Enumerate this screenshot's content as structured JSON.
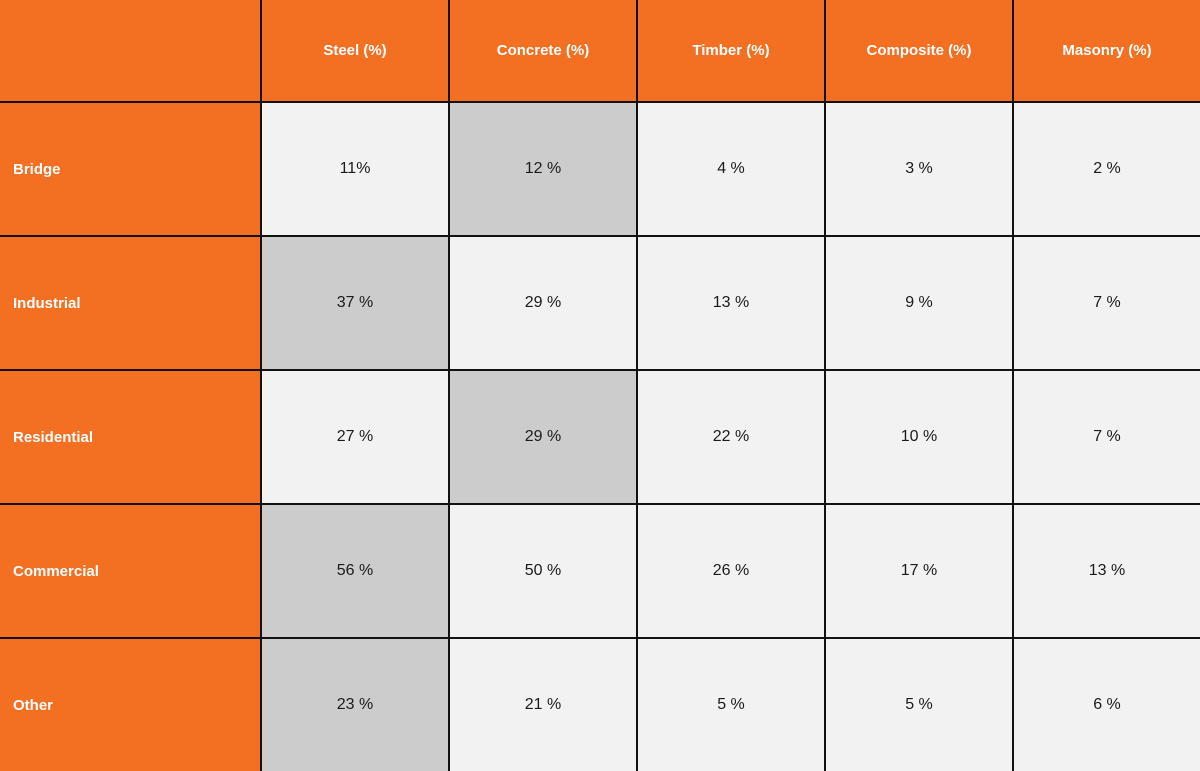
{
  "chart_data": {
    "type": "table",
    "corner_label": "",
    "columns": [
      "Steel (%)",
      "Concrete (%)",
      "Timber (%)",
      "Composite (%)",
      "Masonry (%)"
    ],
    "rows": [
      {
        "label": "Bridge",
        "values": [
          "11%",
          "12 %",
          "4 %",
          "3 %",
          "2 %"
        ],
        "highlighted_columns": [
          1
        ]
      },
      {
        "label": "Industrial",
        "values": [
          "37 %",
          "29 %",
          "13 %",
          "9 %",
          "7 %"
        ],
        "highlighted_columns": [
          0
        ]
      },
      {
        "label": "Residential",
        "values": [
          "27 %",
          "29 %",
          "22 %",
          "10 %",
          "7 %"
        ],
        "highlighted_columns": [
          1
        ]
      },
      {
        "label": "Commercial",
        "values": [
          "56 %",
          "50 %",
          "26 %",
          "17 %",
          "13 %"
        ],
        "highlighted_columns": [
          0
        ]
      },
      {
        "label": "Other",
        "values": [
          "23 %",
          "21 %",
          "5 %",
          "5 %",
          "6 %"
        ],
        "highlighted_columns": [
          0
        ]
      }
    ],
    "numeric": {
      "categories": [
        "Bridge",
        "Industrial",
        "Residential",
        "Commercial",
        "Other"
      ],
      "series": [
        {
          "name": "Steel (%)",
          "values": [
            11,
            37,
            27,
            56,
            23
          ]
        },
        {
          "name": "Concrete (%)",
          "values": [
            12,
            29,
            29,
            50,
            21
          ]
        },
        {
          "name": "Timber (%)",
          "values": [
            4,
            13,
            22,
            26,
            5
          ]
        },
        {
          "name": "Composite (%)",
          "values": [
            3,
            9,
            10,
            17,
            5
          ]
        },
        {
          "name": "Masonry (%)",
          "values": [
            2,
            7,
            7,
            13,
            6
          ]
        }
      ]
    },
    "colors": {
      "header_bg": "#F37023",
      "header_text": "#FFFFFF",
      "cell_bg": "#F2F2F2",
      "cell_highlight_bg": "#CCCCCC",
      "cell_text": "#1A1A1A",
      "border": "#121212"
    }
  }
}
